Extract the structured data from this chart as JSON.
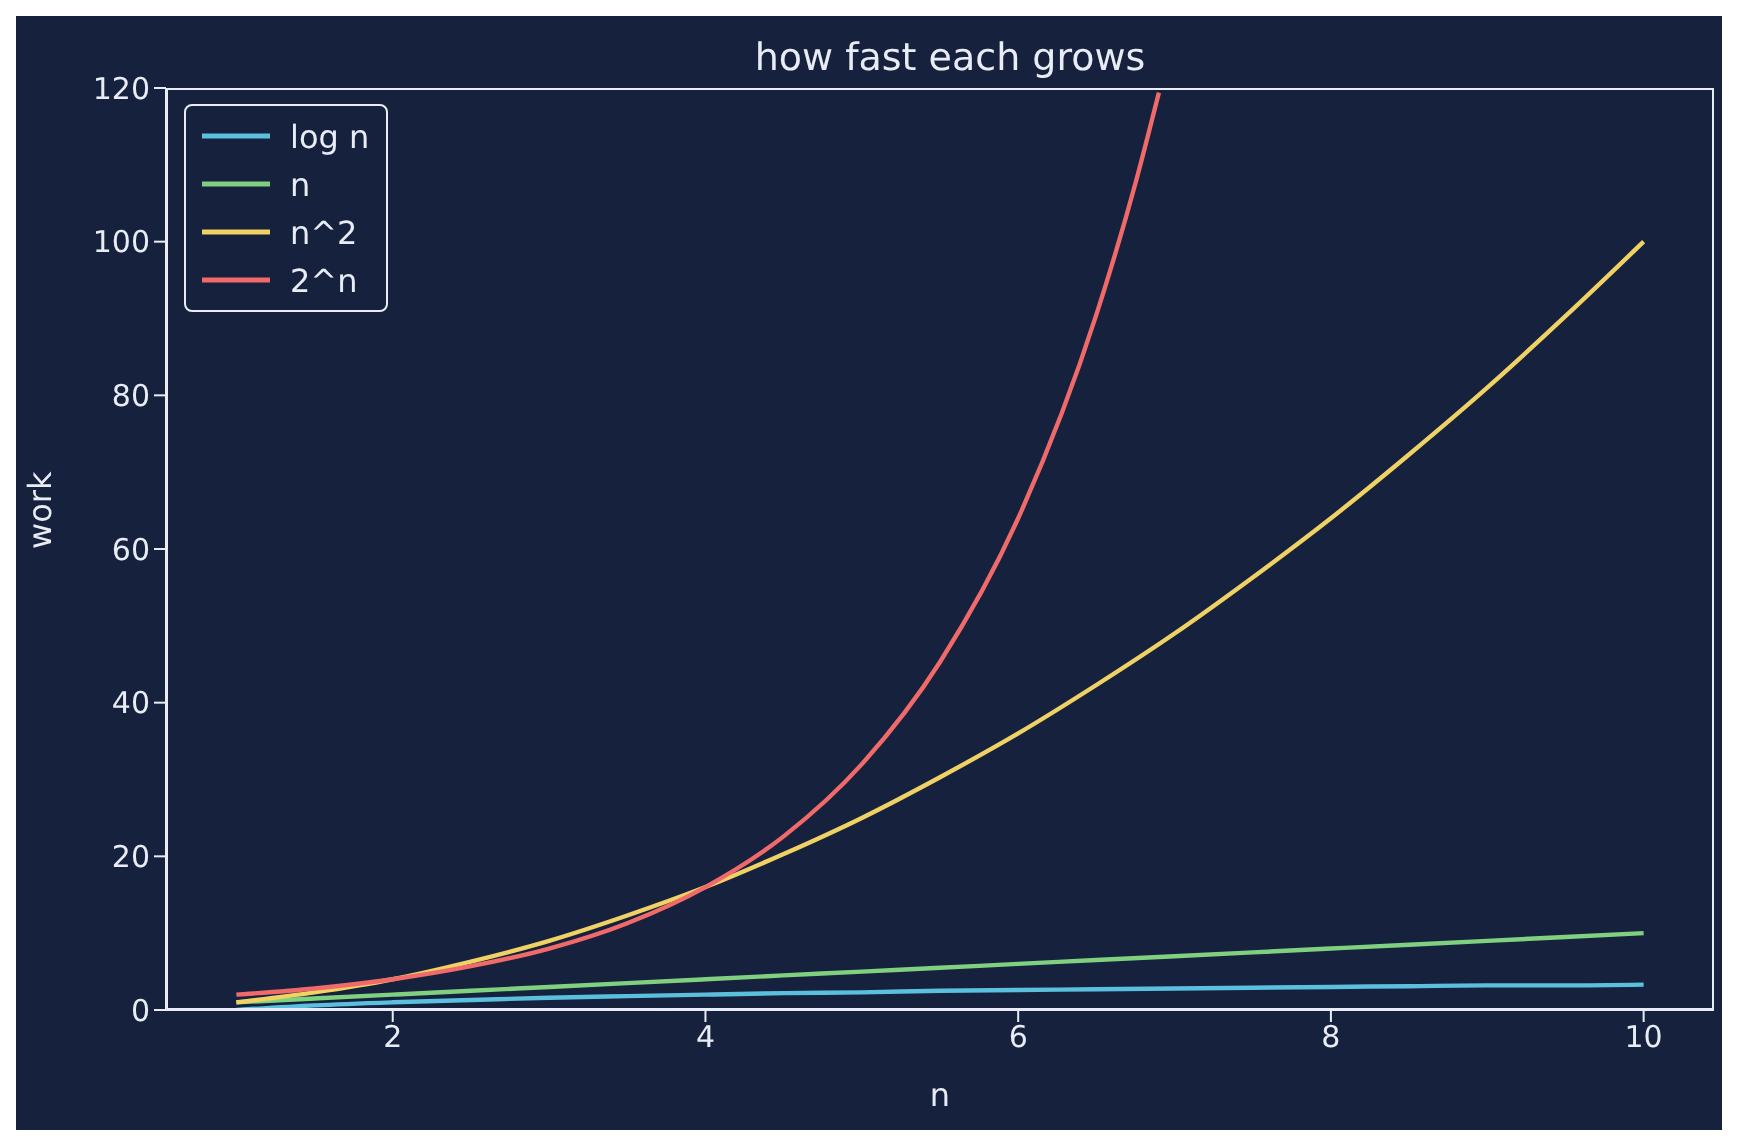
{
  "chart_data": {
    "type": "line",
    "title": "how fast each grows",
    "xlabel": "n",
    "ylabel": "work",
    "x": [
      1,
      1.5,
      2,
      2.5,
      3,
      3.5,
      4,
      4.5,
      5,
      5.5,
      6,
      6.5,
      7,
      7.5,
      8,
      8.5,
      9,
      9.5,
      10
    ],
    "series": [
      {
        "name": "log n",
        "color": "#5bc0de",
        "values": [
          0,
          0.6,
          1,
          1.3,
          1.6,
          1.8,
          2,
          2.2,
          2.3,
          2.5,
          2.6,
          2.7,
          2.8,
          2.9,
          3,
          3.1,
          3.2,
          3.2,
          3.3
        ]
      },
      {
        "name": "n",
        "color": "#7fd17f",
        "values": [
          1,
          1.5,
          2,
          2.5,
          3,
          3.5,
          4,
          4.5,
          5,
          5.5,
          6,
          6.5,
          7,
          7.5,
          8,
          8.5,
          9,
          9.5,
          10
        ]
      },
      {
        "name": "n^2",
        "color": "#f0d264",
        "values": [
          1,
          2.3,
          4,
          6.3,
          9,
          12.3,
          16,
          20.3,
          25,
          30.3,
          36,
          42.3,
          49,
          56.3,
          64,
          72.3,
          81,
          90.3,
          100
        ]
      },
      {
        "name": "2^n",
        "color": "#f06a6a",
        "x": [
          1,
          1.5,
          2,
          2.5,
          3,
          3.5,
          4,
          4.5,
          5,
          5.5,
          6,
          6.5,
          6.75,
          6.9
        ],
        "values": [
          2,
          2.8,
          4,
          5.7,
          8,
          11.3,
          16,
          22.6,
          32,
          45.3,
          64,
          90.5,
          107.6,
          119.4
        ]
      }
    ],
    "xlim": [
      0.55,
      10.45
    ],
    "xticks": [
      2,
      4,
      6,
      8,
      10
    ],
    "ylim": [
      0,
      120
    ],
    "yticks": [
      0,
      20,
      40,
      60,
      80,
      100,
      120
    ],
    "grid": false,
    "legend": "top left",
    "line_style": "solid",
    "marker": "none"
  }
}
